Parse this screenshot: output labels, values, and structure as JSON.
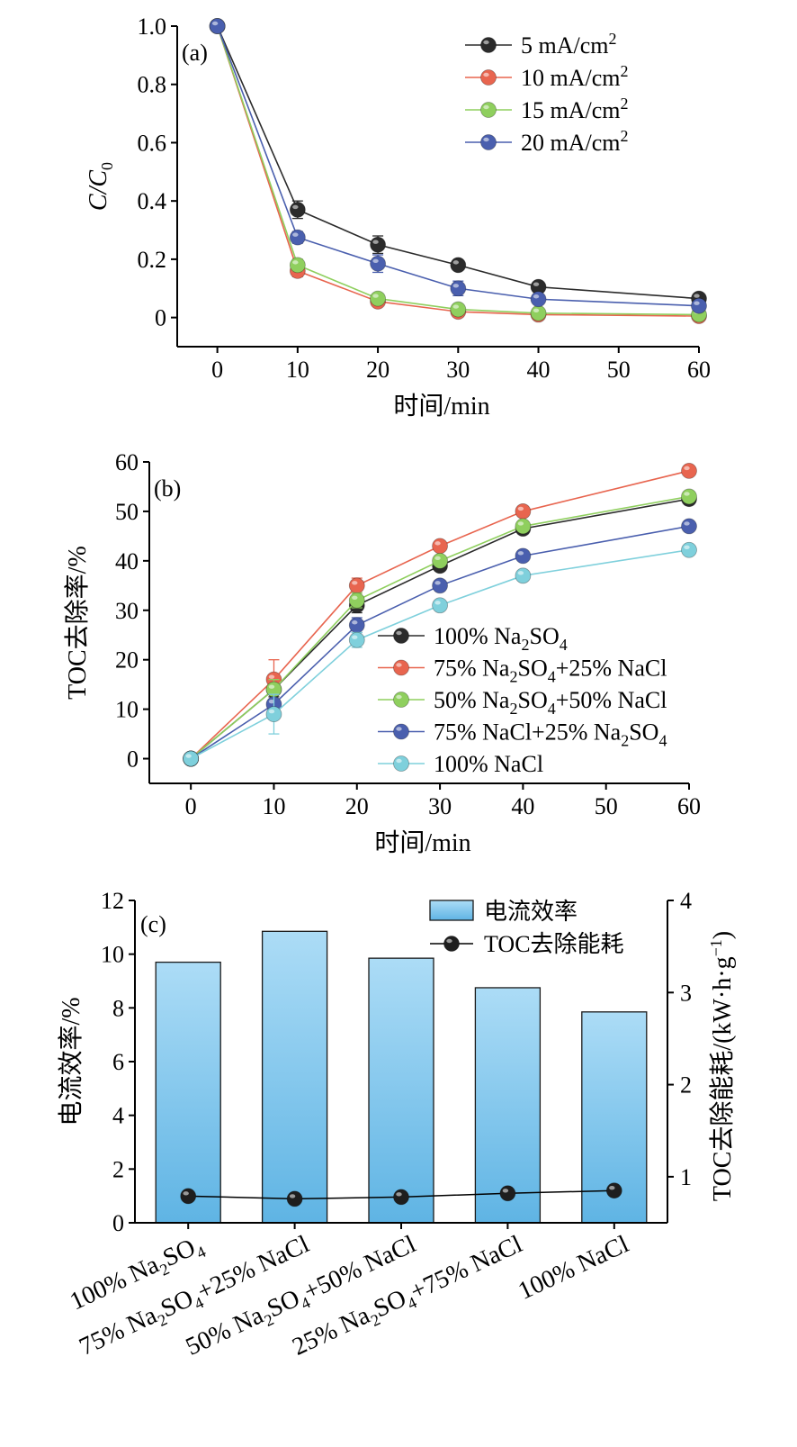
{
  "colors": {
    "black_series": "#2b2b2b",
    "red_series": "#e8654f",
    "green_series": "#8fcf5e",
    "blue_series": "#4a5fae",
    "cyan_series": "#7fd0dc",
    "bar_top": "#acdcf6",
    "bar_bottom": "#5fb4e4"
  },
  "chart_data": [
    {
      "type": "line",
      "panel_label": "(a)",
      "xlabel": "时间/min",
      "ylabel": "C/C0",
      "xlim": [
        -5,
        60
      ],
      "ylim": [
        -0.1,
        1.0
      ],
      "xticks": [
        0,
        10,
        20,
        30,
        40,
        50,
        60
      ],
      "xticklabels": [
        "0",
        "10",
        "20",
        "30",
        "40",
        "50",
        "60"
      ],
      "yticks": [
        0,
        0.2,
        0.4,
        0.6,
        0.8,
        1.0
      ],
      "yticklabels": [
        "0",
        "0.2",
        "0.4",
        "0.6",
        "0.8",
        "1.0"
      ],
      "legend_position": "top-right",
      "x": [
        0,
        10,
        20,
        30,
        40,
        60
      ],
      "series": [
        {
          "name": "5 mA/cm2",
          "legend_parts": [
            "5 mA/cm",
            "2"
          ],
          "color": "#2b2b2b",
          "values": [
            1.0,
            0.37,
            0.25,
            0.18,
            0.105,
            0.065
          ],
          "errors": [
            0,
            0.03,
            0.03,
            0.015,
            0.01,
            0.01
          ]
        },
        {
          "name": "10 mA/cm2",
          "legend_parts": [
            "10 mA/cm",
            "2"
          ],
          "color": "#e8654f",
          "values": [
            1.0,
            0.16,
            0.055,
            0.02,
            0.01,
            0.005
          ],
          "errors": [
            0,
            0.02,
            0.015,
            0.01,
            0.005,
            0.005
          ]
        },
        {
          "name": "15 mA/cm2",
          "legend_parts": [
            "15 mA/cm",
            "2"
          ],
          "color": "#8fcf5e",
          "values": [
            1.0,
            0.18,
            0.065,
            0.028,
            0.015,
            0.01
          ],
          "errors": [
            0,
            0.02,
            0.015,
            0.01,
            0.005,
            0.005
          ]
        },
        {
          "name": "20 mA/cm2",
          "legend_parts": [
            "20 mA/cm",
            "2"
          ],
          "color": "#4a5fae",
          "values": [
            1.0,
            0.275,
            0.185,
            0.1,
            0.063,
            0.04
          ],
          "errors": [
            0,
            0.02,
            0.03,
            0.025,
            0.01,
            0.01
          ]
        }
      ]
    },
    {
      "type": "line",
      "panel_label": "(b)",
      "xlabel": "时间/min",
      "ylabel": "TOC去除率/%",
      "xlim": [
        -5,
        60
      ],
      "ylim": [
        -5,
        60
      ],
      "xticks": [
        0,
        10,
        20,
        30,
        40,
        50,
        60
      ],
      "xticklabels": [
        "0",
        "10",
        "20",
        "30",
        "40",
        "50",
        "60"
      ],
      "yticks": [
        0,
        10,
        20,
        30,
        40,
        50,
        60
      ],
      "yticklabels": [
        "0",
        "10",
        "20",
        "30",
        "40",
        "50",
        "60"
      ],
      "legend_position": "lower-right",
      "x": [
        0,
        10,
        20,
        30,
        40,
        60
      ],
      "series": [
        {
          "name": "100% Na2SO4",
          "legend_parts": [
            "100% Na",
            "2",
            "SO",
            "4"
          ],
          "color": "#2b2b2b",
          "values": [
            0,
            14,
            31,
            39,
            46.5,
            52.5
          ],
          "errors": [
            0,
            1.5,
            1.5,
            1,
            1,
            1
          ]
        },
        {
          "name": "75% Na2SO4+25% NaCl",
          "legend_parts": [
            "75% Na",
            "2",
            "SO",
            "4",
            "+25% NaCl"
          ],
          "color": "#e8654f",
          "values": [
            0,
            16,
            35,
            43,
            50,
            58.2
          ],
          "errors": [
            0,
            4,
            1.5,
            1,
            1,
            1
          ]
        },
        {
          "name": "50% Na2SO4+50% NaCl",
          "legend_parts": [
            "50% Na",
            "2",
            "SO",
            "4",
            "+50% NaCl"
          ],
          "color": "#8fcf5e",
          "values": [
            0,
            14,
            32,
            40,
            47,
            53
          ],
          "errors": [
            0,
            2,
            1.5,
            1,
            1,
            1
          ]
        },
        {
          "name": "75% NaCl+25% Na2SO4",
          "legend_parts": [
            "75% NaCl+25% Na",
            "2",
            "SO",
            "4"
          ],
          "color": "#4a5fae",
          "values": [
            0,
            11,
            27,
            35,
            41,
            47
          ],
          "errors": [
            0,
            2,
            1.5,
            1,
            1,
            1
          ]
        },
        {
          "name": "100% NaCl",
          "legend_parts": [
            "100% NaCl"
          ],
          "color": "#7fd0dc",
          "values": [
            0,
            9,
            24,
            31,
            37,
            42.2
          ],
          "errors": [
            0,
            4,
            1.5,
            1,
            1,
            1
          ]
        }
      ]
    },
    {
      "type": "bar",
      "panel_label": "(c)",
      "ylabel": "电流效率/%",
      "y2label": "TOC去除能耗/(kW·h·g",
      "y2label_sup": "−1",
      "y2label_end": ")",
      "ylim": [
        0,
        12
      ],
      "y2lim": [
        0.5,
        4
      ],
      "yticks": [
        0,
        2,
        4,
        6,
        8,
        10,
        12
      ],
      "yticklabels": [
        "0",
        "2",
        "4",
        "6",
        "8",
        "10",
        "12"
      ],
      "y2ticks": [
        1,
        2,
        3,
        4
      ],
      "y2ticklabels": [
        "1",
        "2",
        "3",
        "4"
      ],
      "legend_position": "top-right",
      "categories": [
        "100% Na2SO4",
        "75% Na2SO4+25% NaCl",
        "50% Na2SO4+50% NaCl",
        "25% Na2SO4+75% NaCl",
        "100% NaCl"
      ],
      "category_parts": [
        [
          "100% Na",
          "2",
          "SO",
          "4"
        ],
        [
          "75% Na",
          "2",
          "SO",
          "4",
          "+25% NaCl"
        ],
        [
          "50% Na",
          "2",
          "SO",
          "4",
          "+50% NaCl"
        ],
        [
          "25% Na",
          "2",
          "SO",
          "4",
          "+75% NaCl"
        ],
        [
          "100% NaCl"
        ]
      ],
      "series": [
        {
          "name": "电流效率",
          "kind": "bar",
          "axis": "left",
          "values": [
            9.7,
            10.85,
            9.85,
            8.75,
            7.85
          ]
        },
        {
          "name": "TOC去除能耗",
          "kind": "line",
          "axis": "right",
          "values": [
            0.79,
            0.76,
            0.78,
            0.82,
            0.85
          ]
        }
      ]
    }
  ]
}
